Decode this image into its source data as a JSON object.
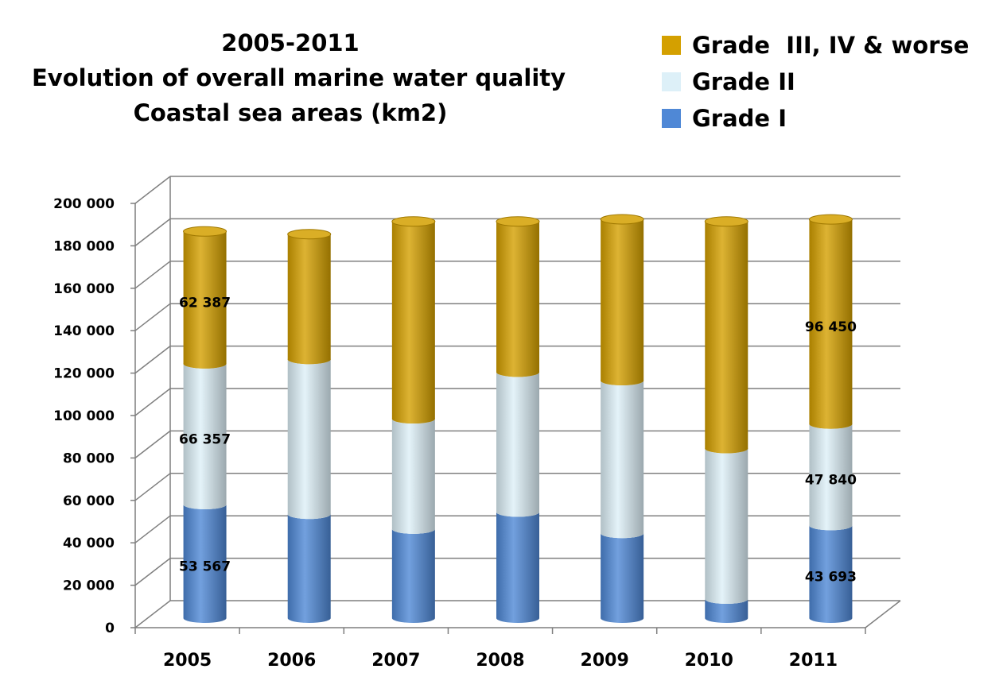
{
  "title": {
    "line1": "2005-2011",
    "line2": "Evolution of overall marine water quality",
    "line3": "Coastal sea areas (km2)"
  },
  "legend": [
    {
      "label": "Grade  III, IV & worse",
      "color": "#D4A000"
    },
    {
      "label": "Grade II",
      "color": "#DDF0F8"
    },
    {
      "label": "Grade I",
      "color": "#4F88D6"
    }
  ],
  "chart_data": {
    "type": "bar",
    "stacked": true,
    "style": "3d-cylinder",
    "title": "2005-2011 Evolution of overall marine water quality Coastal sea areas (km2)",
    "categories": [
      "2005",
      "2006",
      "2007",
      "2008",
      "2009",
      "2010",
      "2011"
    ],
    "series": [
      {
        "name": "Grade I",
        "color": "#4F88D6",
        "values": [
          53567,
          49000,
          42000,
          50000,
          40000,
          9000,
          43693
        ]
      },
      {
        "name": "Grade II",
        "color": "#DDF0F8",
        "values": [
          66357,
          73000,
          52000,
          66000,
          72000,
          71000,
          47840
        ]
      },
      {
        "name": "Grade  III, IV & worse",
        "color": "#D4A000",
        "values": [
          62387,
          59000,
          93000,
          71000,
          76000,
          107000,
          96450
        ]
      }
    ],
    "data_labels": [
      {
        "series": 2,
        "index": 0,
        "text": "62 387"
      },
      {
        "series": 1,
        "index": 0,
        "text": "66 357"
      },
      {
        "series": 0,
        "index": 0,
        "text": "53 567"
      },
      {
        "series": 2,
        "index": 6,
        "text": "96 450"
      },
      {
        "series": 1,
        "index": 6,
        "text": "47 840"
      },
      {
        "series": 0,
        "index": 6,
        "text": "43 693"
      }
    ],
    "ylim": [
      0,
      200000
    ],
    "yticks": [
      0,
      20000,
      40000,
      60000,
      80000,
      100000,
      120000,
      140000,
      160000,
      180000,
      200000
    ],
    "ytick_labels": [
      "0",
      "20 000",
      "40 000",
      "60 000",
      "80 000",
      "100 000",
      "120 000",
      "140 000",
      "160 000",
      "180 000",
      "200 000"
    ],
    "grid": true,
    "legend_position": "top-right"
  }
}
